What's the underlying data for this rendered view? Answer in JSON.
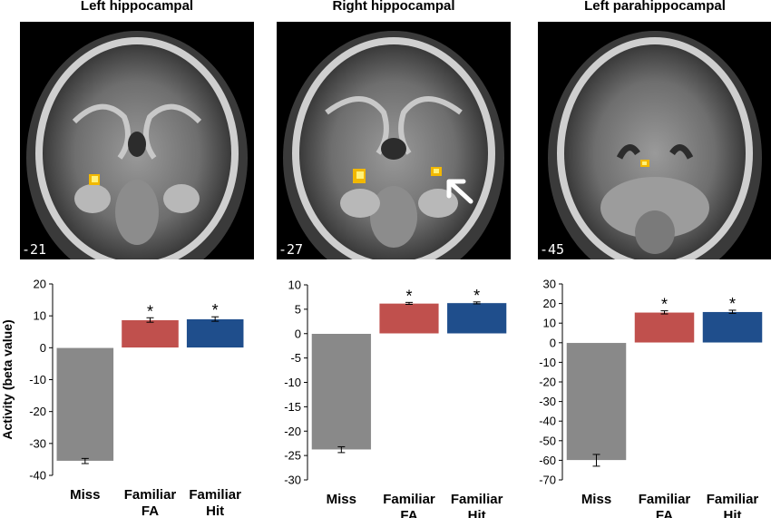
{
  "panels": [
    {
      "title": "Left hippocampal",
      "slice": "-21"
    },
    {
      "title": "Right hippocampal",
      "slice": "-27"
    },
    {
      "title": "Left parahippocampal",
      "slice": "-45"
    }
  ],
  "chart_data": [
    {
      "type": "bar",
      "categories": [
        "Miss",
        "Familiar FA",
        "Familiar Hit"
      ],
      "values": [
        -35.5,
        8.7,
        9.0
      ],
      "errors": [
        0.8,
        0.7,
        0.7
      ],
      "significant": [
        false,
        true,
        true
      ],
      "ylabel": "Activity (beta value)",
      "ylim": [
        -40,
        20
      ],
      "yticks": [
        20,
        10,
        0,
        -10,
        -20,
        -30,
        -40
      ],
      "colors": [
        "#898989",
        "#c0504d",
        "#1f4e8c"
      ],
      "grid": false
    },
    {
      "type": "bar",
      "categories": [
        "Miss",
        "Familiar FA",
        "Familiar Hit"
      ],
      "values": [
        -23.8,
        6.2,
        6.3
      ],
      "errors": [
        0.6,
        0.2,
        0.2
      ],
      "significant": [
        false,
        true,
        true
      ],
      "ylabel": "",
      "ylim": [
        -30,
        10
      ],
      "yticks": [
        10,
        5,
        0,
        -5,
        -10,
        -15,
        -20,
        -25,
        -30
      ],
      "colors": [
        "#898989",
        "#c0504d",
        "#1f4e8c"
      ],
      "grid": false
    },
    {
      "type": "bar",
      "categories": [
        "Miss",
        "Familiar FA",
        "Familiar Hit"
      ],
      "values": [
        -60.0,
        15.5,
        15.8
      ],
      "errors": [
        3.0,
        0.8,
        0.8
      ],
      "significant": [
        false,
        true,
        true
      ],
      "ylabel": "",
      "ylim": [
        -70,
        30
      ],
      "yticks": [
        30,
        20,
        10,
        0,
        -10,
        -20,
        -30,
        -40,
        -50,
        -60,
        -70
      ],
      "colors": [
        "#898989",
        "#c0504d",
        "#1f4e8c"
      ],
      "grid": false
    }
  ],
  "significance_marker": "*"
}
